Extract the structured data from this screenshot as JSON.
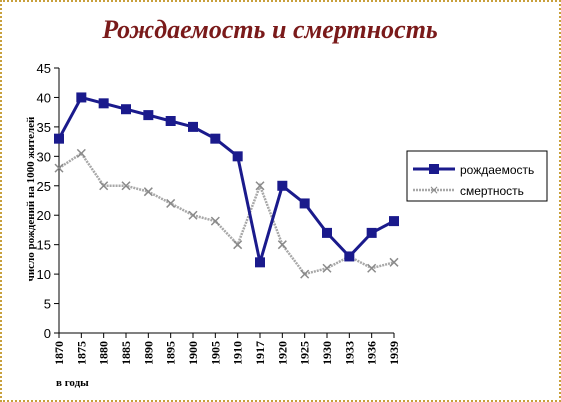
{
  "chart_data": {
    "type": "line",
    "title": "Рождаемость и смертность",
    "xlabel": "в годы",
    "ylabel": "число рождений на 1000 жителей",
    "categories": [
      "1870",
      "1875",
      "1880",
      "1885",
      "1890",
      "1895",
      "1900",
      "1905",
      "1910",
      "1917",
      "1920",
      "1925",
      "1930",
      "1933",
      "1936",
      "1939"
    ],
    "ylim": [
      0,
      45
    ],
    "yticks": [
      0,
      5,
      10,
      15,
      20,
      25,
      30,
      35,
      40,
      45
    ],
    "grid": false,
    "legend": "right",
    "series": [
      {
        "name": "рождаемость",
        "color": "#1a1a8c",
        "marker": "square",
        "values": [
          33,
          40,
          39,
          38,
          37,
          36,
          35,
          33,
          30,
          12,
          25,
          22,
          17,
          13,
          17,
          19
        ]
      },
      {
        "name": "смертность",
        "color": "#a8a8a8",
        "marker": "x",
        "values": [
          28,
          30.5,
          25,
          25,
          24,
          22,
          20,
          19,
          15,
          25,
          15,
          10,
          11,
          13,
          11,
          12
        ]
      }
    ]
  }
}
